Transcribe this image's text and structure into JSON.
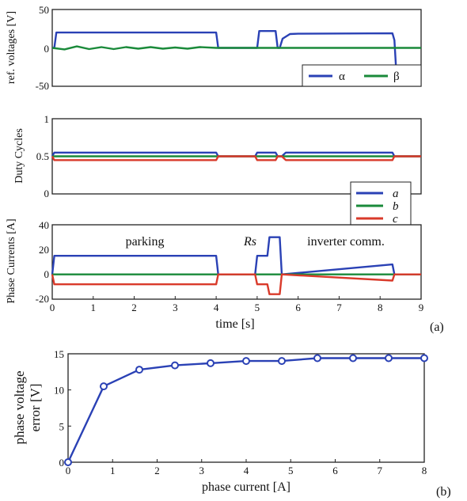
{
  "chart_data": [
    {
      "type": "line",
      "ylabel": "ref. voltages [V]",
      "ylim": [
        -50,
        50
      ],
      "yticks": [
        "50",
        "0",
        "-50"
      ],
      "xlim": [
        0,
        9
      ],
      "grid": false,
      "legend": {
        "placement": "bottom-right",
        "entries": [
          "α",
          "β"
        ]
      },
      "series": [
        {
          "name": "α",
          "color": "#2a41b5",
          "x": [
            0,
            0.05,
            0.1,
            0.15,
            4.0,
            4.05,
            4.1,
            4.95,
            5.0,
            5.05,
            5.45,
            5.5,
            5.55,
            5.62,
            5.8,
            6.0,
            8.3,
            8.35,
            8.4,
            8.8,
            9.0
          ],
          "y": [
            0,
            0,
            20,
            20,
            20,
            0,
            0,
            0,
            0,
            22,
            22,
            0,
            0,
            12,
            18,
            18.5,
            19,
            10,
            -36,
            -36,
            -36
          ]
        },
        {
          "name": "β",
          "color": "#1a8a3a",
          "x": [
            0,
            0.3,
            0.6,
            0.9,
            1.2,
            1.5,
            1.8,
            2.1,
            2.4,
            2.7,
            3.0,
            3.3,
            3.6,
            4.0,
            4.1,
            9.0
          ],
          "y": [
            0,
            -2,
            2,
            -1.5,
            1,
            -1.5,
            1,
            -1,
            1,
            -1,
            0.5,
            -1,
            1,
            0,
            0,
            0
          ]
        }
      ]
    },
    {
      "type": "line",
      "ylabel": "Duty Cycles",
      "ylim": [
        0,
        1
      ],
      "yticks": [
        "1",
        "0.5",
        "0"
      ],
      "xlim": [
        0,
        9
      ],
      "grid": false,
      "legend": {
        "placement": "bottom-right",
        "entries": [
          "a",
          "b",
          "c"
        ]
      },
      "series": [
        {
          "name": "a",
          "color": "#2a41b5",
          "x": [
            0,
            0.05,
            4.0,
            4.05,
            4.95,
            5.0,
            5.45,
            5.5,
            5.6,
            5.7,
            8.3,
            8.35,
            9.0
          ],
          "y": [
            0.5,
            0.55,
            0.55,
            0.5,
            0.5,
            0.55,
            0.55,
            0.5,
            0.5,
            0.55,
            0.55,
            0.5,
            0.5
          ]
        },
        {
          "name": "b",
          "color": "#1a8a3a",
          "x": [
            0,
            9.0
          ],
          "y": [
            0.5,
            0.5
          ]
        },
        {
          "name": "c",
          "color": "#d93a2a",
          "x": [
            0,
            0.05,
            4.0,
            4.05,
            4.95,
            5.0,
            5.45,
            5.5,
            5.6,
            5.7,
            8.3,
            8.35,
            9.0
          ],
          "y": [
            0.5,
            0.45,
            0.45,
            0.5,
            0.5,
            0.45,
            0.45,
            0.5,
            0.5,
            0.45,
            0.45,
            0.5,
            0.5
          ]
        }
      ]
    },
    {
      "type": "line",
      "ylabel": "Phase Currents [A]",
      "xlabel": "time [s]",
      "ylim": [
        -20,
        40
      ],
      "yticks": [
        "40",
        "20",
        "0",
        "-20"
      ],
      "xlim": [
        0,
        9
      ],
      "xticks": [
        "0",
        "1",
        "2",
        "3",
        "4",
        "5",
        "6",
        "7",
        "8",
        "9"
      ],
      "grid": false,
      "annotations": [
        {
          "text": "parking",
          "x": 2.4,
          "y": 30
        },
        {
          "text": "Rs",
          "x": 5.0,
          "y": 30
        },
        {
          "text": "inverter comm.",
          "x": 7.2,
          "y": 30
        }
      ],
      "series": [
        {
          "name": "a",
          "color": "#2a41b5",
          "x": [
            0,
            0.05,
            4.0,
            4.05,
            4.95,
            5.0,
            5.25,
            5.3,
            5.55,
            5.6,
            8.3,
            8.35,
            9.0
          ],
          "y": [
            0,
            15,
            15,
            0,
            0,
            15,
            15,
            30,
            30,
            0,
            8,
            0,
            0
          ]
        },
        {
          "name": "b",
          "color": "#1a8a3a",
          "x": [
            0,
            9.0
          ],
          "y": [
            0,
            0
          ]
        },
        {
          "name": "c",
          "color": "#d93a2a",
          "x": [
            0,
            0.05,
            4.0,
            4.05,
            4.95,
            5.0,
            5.25,
            5.3,
            5.55,
            5.6,
            8.3,
            8.35,
            9.0
          ],
          "y": [
            0,
            -8,
            -8,
            0,
            0,
            -8,
            -8,
            -16,
            -16,
            0,
            -5,
            0,
            0
          ]
        }
      ]
    },
    {
      "type": "line",
      "ylabel": "phase voltage error [V]",
      "xlabel": "phase current [A]",
      "ylim": [
        0,
        15
      ],
      "yticks": [
        "15",
        "10",
        "5",
        "0"
      ],
      "xlim": [
        0,
        8
      ],
      "xticks": [
        "0",
        "1",
        "2",
        "3",
        "4",
        "5",
        "6",
        "7",
        "8"
      ],
      "grid": false,
      "series": [
        {
          "name": "",
          "color": "#2a41b5",
          "marker": "circle",
          "x": [
            0,
            0.8,
            1.6,
            2.4,
            3.2,
            4.0,
            4.8,
            5.6,
            6.4,
            7.2,
            8.0
          ],
          "y": [
            0,
            10.5,
            12.8,
            13.4,
            13.7,
            14.0,
            14.0,
            14.4,
            14.4,
            14.4,
            14.4
          ]
        }
      ]
    }
  ],
  "labels": {
    "time_axis": "time [s]",
    "panel_a_tag": "(a)",
    "panel_b_tag": "(b)",
    "bottom_ylabel_line1": "phase voltage",
    "bottom_ylabel_line2": "error [V]",
    "bottom_xlabel": "phase current [A]"
  }
}
